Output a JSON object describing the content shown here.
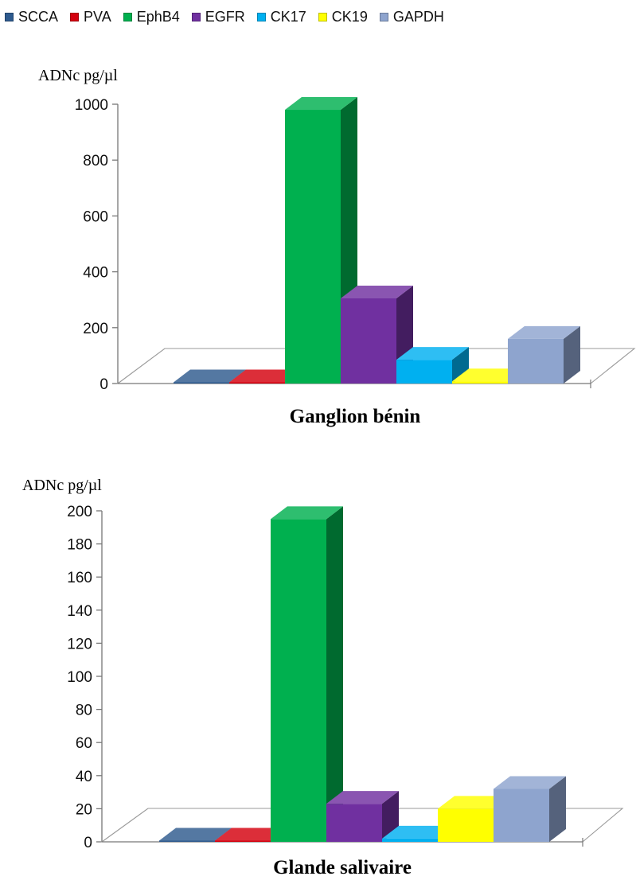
{
  "legend": [
    {
      "name": "SCCA",
      "color": "#2E5A8E"
    },
    {
      "name": "PVA",
      "color": "#D4000E"
    },
    {
      "name": "EphB4",
      "color": "#00B04F"
    },
    {
      "name": "EGFR",
      "color": "#7030A0"
    },
    {
      "name": "CK17",
      "color": "#00B0F0"
    },
    {
      "name": "CK19",
      "color": "#FFFF00"
    },
    {
      "name": "GAPDH",
      "color": "#8EA4CE"
    }
  ],
  "chart_data": [
    {
      "type": "bar",
      "title": "Ganglion bénin",
      "unit_label": "ADNc pg/µl",
      "categories": [
        "SCCA",
        "PVA",
        "EphB4",
        "EGFR",
        "CK17",
        "CK19",
        "GAPDH"
      ],
      "values": [
        2,
        2,
        980,
        305,
        85,
        8,
        160
      ],
      "ylim": [
        0,
        1000
      ],
      "yticks": [
        0,
        200,
        400,
        600,
        800,
        1000
      ],
      "grid": false,
      "legend": "top",
      "bar_3d": true
    },
    {
      "type": "bar",
      "title": "Glande salivaire",
      "unit_label": "ADNc pg/µl",
      "categories": [
        "SCCA",
        "PVA",
        "EphB4",
        "EGFR",
        "CK17",
        "CK19",
        "GAPDH"
      ],
      "values": [
        0.3,
        0.3,
        195,
        23,
        2,
        20,
        32
      ],
      "ylim": [
        0,
        200
      ],
      "yticks": [
        0,
        20,
        40,
        60,
        80,
        100,
        120,
        140,
        160,
        180,
        200
      ],
      "grid": false,
      "legend": "top",
      "bar_3d": true
    }
  ]
}
